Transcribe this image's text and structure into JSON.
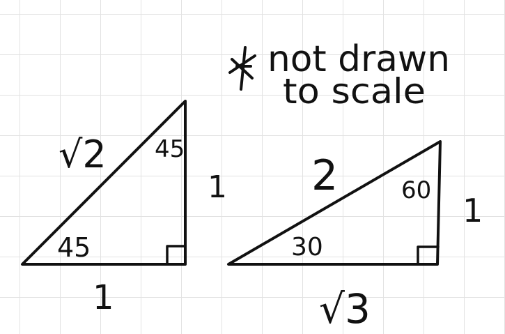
{
  "note": {
    "line1": "not drawn",
    "line2": "to scale"
  },
  "triangle_45": {
    "hypotenuse": "√2",
    "vertical_side": "1",
    "base": "1",
    "top_angle": "45",
    "bottom_angle": "45"
  },
  "triangle_30_60": {
    "hypotenuse": "2",
    "vertical_side": "1",
    "base": "√3",
    "top_angle": "60",
    "bottom_angle": "30"
  },
  "colors": {
    "ink": "#111111",
    "grid": "#e2e2e2"
  }
}
